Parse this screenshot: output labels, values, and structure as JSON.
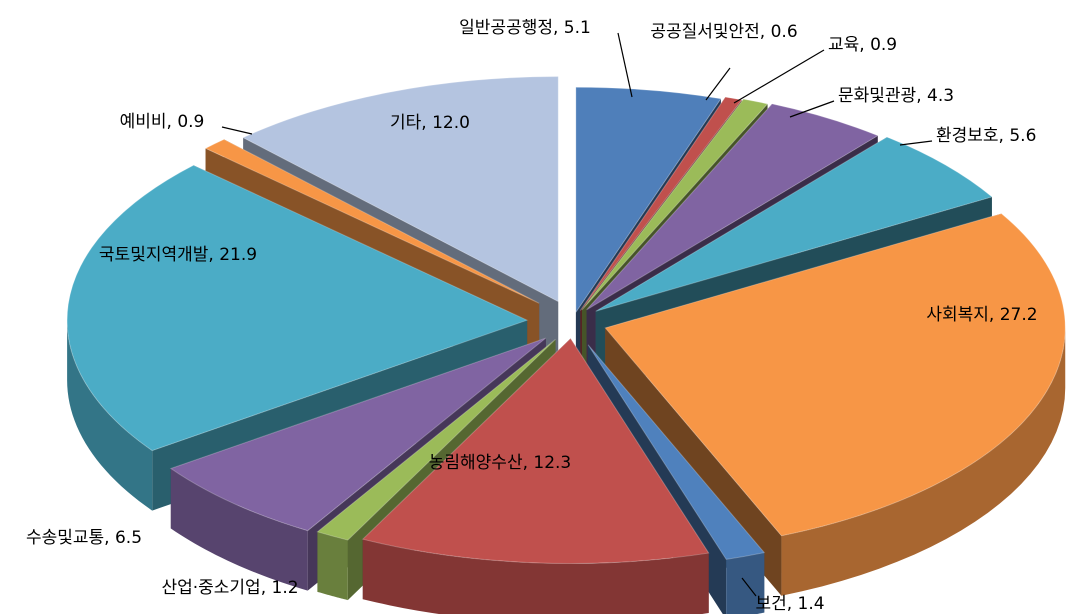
{
  "chart_data": {
    "type": "pie",
    "variant": "3d-exploded",
    "start_angle_deg": 0,
    "direction": "clockwise",
    "slices": [
      {
        "label": "일반공공행정",
        "value": 5.1,
        "display": "일반공공행정, 5.1",
        "color": "#4F7FBA"
      },
      {
        "label": "공공질서및안전",
        "value": 0.6,
        "display": "공공질서및안전, 0.6",
        "color": "#C0504D"
      },
      {
        "label": "교육",
        "value": 0.9,
        "display": "교육, 0.9",
        "color": "#9BBB59"
      },
      {
        "label": "문화및관광",
        "value": 4.3,
        "display": "문화및관광, 4.3",
        "color": "#8064A2"
      },
      {
        "label": "환경보호",
        "value": 5.6,
        "display": "환경보호, 5.6",
        "color": "#4BACC6"
      },
      {
        "label": "사회복지",
        "value": 27.2,
        "display": "사회복지, 27.2",
        "color": "#F79646"
      },
      {
        "label": "보건",
        "value": 1.4,
        "display": "보건, 1.4",
        "color": "#4F81BD"
      },
      {
        "label": "농림해양수산",
        "value": 12.3,
        "display": "농림해양수산, 12.3",
        "color": "#C0504D"
      },
      {
        "label": "산업·중소기업",
        "value": 1.2,
        "display": "산업·중소기업, 1.2",
        "color": "#9BBB59"
      },
      {
        "label": "수송및교통",
        "value": 6.5,
        "display": "수송및교통, 6.5",
        "color": "#8064A2"
      },
      {
        "label": "국토및지역개발",
        "value": 21.9,
        "display": "국토및지역개발, 21.9",
        "color": "#4BACC6"
      },
      {
        "label": "예비비",
        "value": 0.9,
        "display": "예비비, 0.9",
        "color": "#F79646"
      },
      {
        "label": "기타",
        "value": 12.0,
        "display": "기타, 12.0",
        "color": "#B4C4E0"
      }
    ],
    "legend": "none"
  }
}
